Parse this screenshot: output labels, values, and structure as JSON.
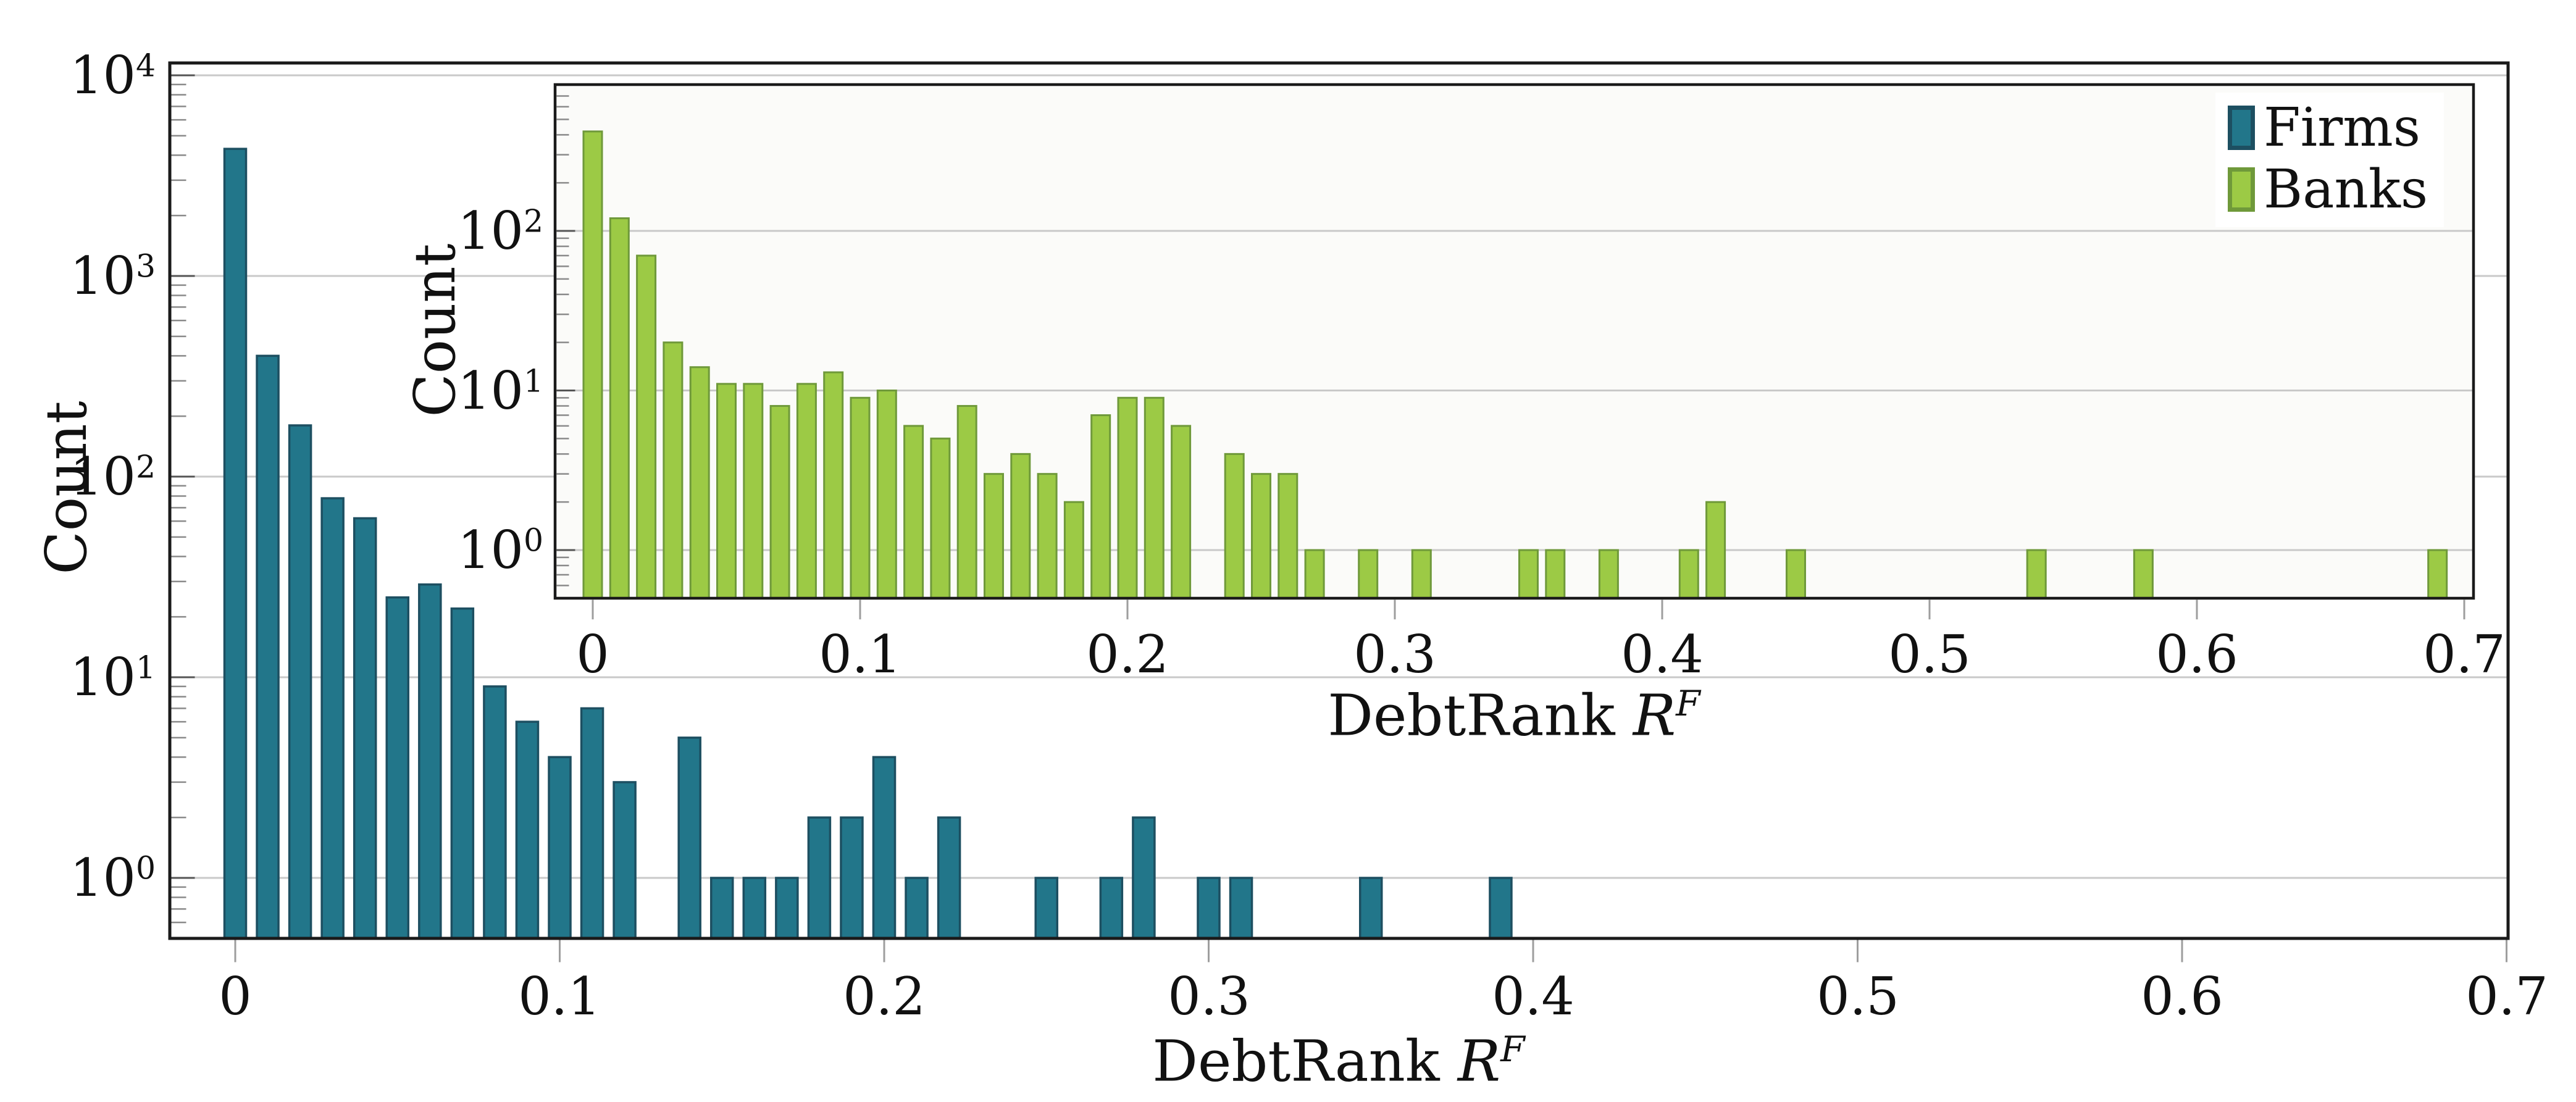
{
  "figure": {
    "background": "#ffffff",
    "text_color": "#111111",
    "frame_color": "#1a1a1a",
    "grid_color": "#c9c9c9",
    "outside_tick_color": "#9e9e9e",
    "minor_tick_color": "#8a8a8a",
    "decade_tick_color": "#555555"
  },
  "chart_data": {
    "type": "bar",
    "subtype": "histogram-log-y",
    "legend": {
      "position": "inset-top-right",
      "items": [
        {
          "label": "Firms",
          "fill": "#22768a",
          "edge": "#1d4f61"
        },
        {
          "label": "Banks",
          "fill": "#9cca45",
          "edge": "#6f993a"
        }
      ]
    },
    "plots": [
      {
        "id": "main",
        "series": "Firms",
        "bar_fill": "#22768a",
        "bar_edge": "#1d4f61",
        "bg": "#ffffff",
        "xlabel_prefix": "DebtRank ",
        "xlabel_var": "R",
        "xlabel_sup": "F",
        "ylabel": "Count",
        "x_start": 0.0,
        "x_step": 0.01,
        "counts": [
          4300,
          400,
          180,
          78,
          62,
          25,
          29,
          22,
          9,
          6,
          4,
          7,
          3,
          0,
          5,
          1,
          1,
          1,
          2,
          2,
          4,
          1,
          2,
          0,
          0,
          1,
          0,
          1,
          2,
          0,
          1,
          1,
          0,
          0,
          0,
          1,
          0,
          0,
          0,
          1
        ],
        "xlim": [
          -0.02,
          0.7
        ],
        "ylim_log": [
          -0.3,
          4.06
        ],
        "grid": "horizontal-decades",
        "x_ticks": [
          "0",
          "0.1",
          "0.2",
          "0.3",
          "0.4",
          "0.5",
          "0.6",
          "0.7"
        ],
        "y_ticks": [
          {
            "base": "10",
            "exp": "4"
          },
          {
            "base": "10",
            "exp": "3"
          },
          {
            "base": "10",
            "exp": "2"
          },
          {
            "base": "10",
            "exp": "1"
          },
          {
            "base": "10",
            "exp": "0"
          }
        ]
      },
      {
        "id": "inset",
        "series": "Banks",
        "bar_fill": "#9cca45",
        "bar_edge": "#6f993a",
        "bg": "#fbfbf9",
        "xlabel_prefix": "DebtRank ",
        "xlabel_var": "R",
        "xlabel_sup": "F",
        "ylabel": "Count",
        "x_start": 0.0,
        "x_step": 0.01,
        "counts": [
          420,
          120,
          70,
          20,
          14,
          11,
          11,
          8,
          11,
          13,
          9,
          10,
          6,
          5,
          8,
          3,
          4,
          3,
          2,
          7,
          9,
          9,
          6,
          0,
          4,
          3,
          3,
          1,
          0,
          1,
          0,
          1,
          0,
          0,
          0,
          1,
          1,
          0,
          1,
          0,
          0,
          1,
          2,
          0,
          0,
          1,
          0,
          0,
          0,
          0,
          0,
          0,
          0,
          0,
          1,
          0,
          0,
          0,
          1,
          0,
          0,
          0,
          0,
          0,
          0,
          0,
          0,
          0,
          0,
          1
        ],
        "xlim": [
          -0.014,
          0.704
        ],
        "ylim_log": [
          -0.3,
          2.92
        ],
        "grid": "horizontal-decades",
        "x_ticks": [
          "0",
          "0.1",
          "0.2",
          "0.3",
          "0.4",
          "0.5",
          "0.6",
          "0.7"
        ],
        "y_ticks": [
          {
            "base": "10",
            "exp": "2"
          },
          {
            "base": "10",
            "exp": "1"
          },
          {
            "base": "10",
            "exp": "0"
          }
        ]
      }
    ]
  }
}
